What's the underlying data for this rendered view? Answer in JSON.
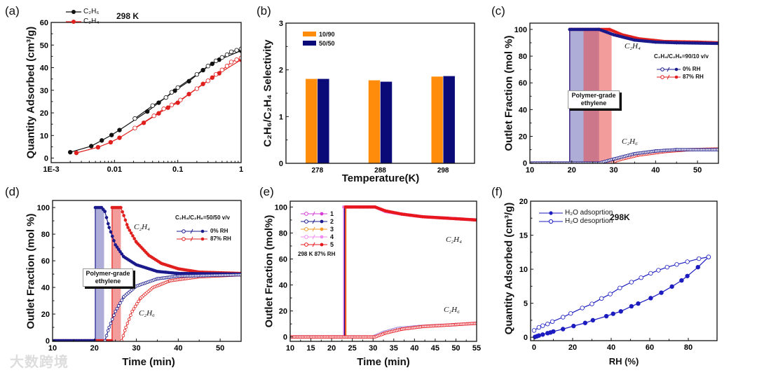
{
  "watermark": "大数跨境",
  "chart_data": [
    {
      "id": "a",
      "type": "scatter",
      "panel_label": "(a)",
      "xscale": "log",
      "xlim": [
        0.001,
        1
      ],
      "ylim": [
        -2,
        60
      ],
      "xticks": [
        0.001,
        0.01,
        0.1,
        1
      ],
      "xtick_labels": [
        "1E-3",
        "0.01",
        "0.1",
        "1"
      ],
      "yticks": [
        0,
        10,
        20,
        30,
        40,
        50,
        60
      ],
      "xlabel": "",
      "ylabel": "Quantity Adsorbed (cm³/g)",
      "annotations": [
        "298 K"
      ],
      "legend": [
        "C₂H₆",
        "C₂H₄"
      ],
      "colors": {
        "C2H6": "#111111",
        "C2H4": "#e0201e"
      },
      "series": [
        {
          "name": "C₂H₆ adsorption",
          "color": "#111111",
          "marker": "filled",
          "x": [
            0.002,
            0.0043,
            0.0063,
            0.009,
            0.012,
            0.033,
            0.05,
            0.09,
            0.15,
            0.25,
            0.35,
            0.45,
            1
          ],
          "y": [
            2.6,
            5.3,
            7.8,
            10.2,
            12.4,
            20.6,
            24.5,
            29.8,
            34,
            38.9,
            41.7,
            43.5,
            47.5
          ]
        },
        {
          "name": "C₂H₆ desorption",
          "color": "#111111",
          "marker": "open",
          "x": [
            1,
            0.85,
            0.7,
            0.6,
            0.5,
            0.4,
            0.3,
            0.2,
            0.1,
            0.08,
            0.065,
            0.04,
            0.021
          ],
          "y": [
            48.3,
            47.7,
            47,
            45.7,
            44.5,
            43,
            40.7,
            37,
            31.2,
            29.1,
            26.8,
            23.2,
            17.5
          ]
        },
        {
          "name": "C₂H₄ adsorption",
          "color": "#e0201e",
          "marker": "filled",
          "x": [
            0.0025,
            0.0055,
            0.0087,
            0.012,
            0.029,
            0.05,
            0.07,
            0.1,
            0.15,
            0.25,
            0.35,
            0.45,
            1
          ],
          "y": [
            2.3,
            4.8,
            7,
            9,
            15.6,
            19.8,
            22.3,
            24.5,
            28.3,
            32.8,
            35.6,
            37.5,
            43.5
          ]
        },
        {
          "name": "C₂H₄ desorption",
          "color": "#e0201e",
          "marker": "open",
          "x": [
            1,
            0.85,
            0.7,
            0.6,
            0.5,
            0.4,
            0.3,
            0.2,
            0.11,
            0.08,
            0.06,
            0.042,
            0.021
          ],
          "y": [
            44.3,
            43.5,
            42.5,
            40.7,
            39,
            37,
            34.2,
            30.7,
            25.7,
            23.5,
            21.8,
            18.7,
            13.3
          ]
        }
      ]
    },
    {
      "id": "b",
      "type": "bar",
      "panel_label": "(b)",
      "categories": [
        "278",
        "288",
        "298"
      ],
      "ylim": [
        0,
        3
      ],
      "yticks": [
        0,
        1,
        2,
        3
      ],
      "yminor": [
        0.5,
        1.5,
        2.5
      ],
      "xlabel": "Temperature(K)",
      "ylabel": "C₂H₆/C₂H₄ Selectivity",
      "series": [
        {
          "name": "10/90",
          "color": "#ff8c0a",
          "values": [
            1.81,
            1.78,
            1.86
          ]
        },
        {
          "name": "50/50",
          "color": "#0a0a78",
          "values": [
            1.81,
            1.75,
            1.87
          ]
        }
      ]
    },
    {
      "id": "c",
      "type": "line",
      "panel_label": "(c)",
      "dense_markers": true,
      "xlim": [
        10,
        55
      ],
      "ylim": [
        -0.2,
        104.7
      ],
      "xticks": [
        10,
        20,
        30,
        40,
        50
      ],
      "yticks": [
        0,
        20,
        40,
        60,
        80,
        100
      ],
      "xlabel": "",
      "ylabel": "Outlet Fraction (mol %)",
      "annotations": [
        "C₂H₄",
        "C₂H₆",
        "C₂H₄/C₂H₆=90/10 v/v",
        "Polymer-grade ethylene"
      ],
      "legend": [
        "0% RH",
        "87% RH"
      ],
      "regions": [
        {
          "name": "0% RH polymer-grade window",
          "x": [
            19.5,
            26.5
          ],
          "color": "#6a6ab8"
        },
        {
          "name": "87% RH polymer-grade window",
          "x": [
            22.8,
            29.5
          ],
          "color": "#e84a4a"
        }
      ],
      "series": [
        {
          "name": "C₂H₄ 87% RH",
          "color": "#e0201e",
          "marker": "filled",
          "x": [
            10,
            19.5,
            19.5,
            29,
            32,
            36,
            42,
            50,
            55
          ],
          "y": [
            0,
            0,
            100,
            100,
            96,
            93,
            91,
            90.5,
            90
          ]
        },
        {
          "name": "C₂H₆ 87% RH",
          "color": "#e0201e",
          "marker": "open",
          "x": [
            10,
            29,
            32,
            36,
            42,
            48,
            55
          ],
          "y": [
            0,
            0,
            3,
            6,
            8.5,
            10,
            10.5
          ]
        },
        {
          "name": "C₂H₄ 0% RH",
          "color": "#1a1a8c",
          "marker": "filled",
          "x": [
            10,
            19.5,
            19.5,
            26.5,
            30,
            35,
            40,
            45,
            55
          ],
          "y": [
            0,
            0,
            100,
            100,
            96,
            92,
            90.5,
            90,
            89.5
          ]
        },
        {
          "name": "C₂H₆ 0% RH",
          "color": "#1a1a8c",
          "marker": "open",
          "x": [
            10,
            26.5,
            30,
            35,
            40,
            45,
            55
          ],
          "y": [
            0,
            0,
            3,
            7,
            9,
            10,
            10
          ]
        }
      ]
    },
    {
      "id": "d",
      "type": "line",
      "panel_label": "(d)",
      "dense_markers": true,
      "xlim": [
        10,
        55
      ],
      "ylim": [
        -0.5,
        105.3
      ],
      "xticks": [
        10,
        20,
        30,
        40,
        50
      ],
      "yticks": [
        0,
        20,
        40,
        60,
        80,
        100
      ],
      "xlabel": "Time (min)",
      "ylabel": "Outlet Fraction (mol %)",
      "annotations": [
        "C₂H₄",
        "C₂H₆",
        "C₂H₄/C₂H₆=50/50 v/v",
        "Polymer-grade ethylene"
      ],
      "legend": [
        "0% RH",
        "87% RH"
      ],
      "regions": [
        {
          "name": "0% RH polymer-grade window",
          "x": [
            20.2,
            22.3
          ],
          "color": "#6a6ab8"
        },
        {
          "name": "87% RH polymer-grade window",
          "x": [
            24.2,
            26.3
          ],
          "color": "#e84a4a"
        }
      ],
      "series": [
        {
          "name": "C₂H₄ 87% RH",
          "color": "#e0201e",
          "marker": "filled",
          "x": [
            10,
            24.2,
            24.2,
            26.3,
            27,
            28,
            30,
            33,
            36,
            40,
            45,
            55
          ],
          "y": [
            0,
            0,
            100,
            100,
            94,
            85,
            74,
            64,
            58,
            54,
            51.5,
            50.5
          ]
        },
        {
          "name": "C₂H₆ 87% RH",
          "color": "#e0201e",
          "marker": "open",
          "x": [
            26.5,
            27.5,
            29,
            31,
            34,
            38,
            45,
            55
          ],
          "y": [
            0,
            10,
            22,
            32,
            40,
            45,
            48,
            49.5
          ]
        },
        {
          "name": "C₂H₄ 0% RH",
          "color": "#1a1a8c",
          "marker": "filled",
          "x": [
            10,
            20.2,
            20.2,
            21.7,
            22.5,
            23.5,
            25,
            27,
            30,
            35,
            40,
            55
          ],
          "y": [
            0,
            0,
            100,
            100,
            97,
            85,
            72,
            63,
            57,
            52,
            50.5,
            50
          ]
        },
        {
          "name": "C₂H₆ 0% RH",
          "color": "#1a1a8c",
          "marker": "open",
          "x": [
            22.5,
            23.5,
            25,
            27,
            30,
            35,
            40,
            55
          ],
          "y": [
            0,
            10,
            22,
            33,
            41,
            46.5,
            48.5,
            49.5
          ]
        }
      ]
    },
    {
      "id": "e",
      "type": "line",
      "panel_label": "(e)",
      "dense_markers": true,
      "xlim": [
        10,
        55
      ],
      "ylim": [
        -3.4,
        104.5
      ],
      "xticks": [
        10,
        15,
        20,
        25,
        30,
        35,
        40,
        45,
        50,
        55
      ],
      "yticks": [
        0,
        20,
        40,
        60,
        80,
        100
      ],
      "xlabel": "Time (min)",
      "ylabel": "Outlet Fraction (mol%)",
      "annotations": [
        "C₂H₄",
        "C₂H₆",
        "298 K 87% RH"
      ],
      "legend": [
        "1",
        "2",
        "3",
        "4",
        "5"
      ],
      "series": [
        {
          "name": "1 C₂H₄",
          "color": "#d63bd6",
          "marker": "filled",
          "x": [
            10,
            22.9,
            22.9,
            30.5,
            33,
            37,
            42,
            50,
            55
          ],
          "y": [
            0,
            0,
            100,
            100,
            96.5,
            94.5,
            92.5,
            91,
            90
          ]
        },
        {
          "name": "4 C₂H₄",
          "color": "#f08cf0",
          "marker": "filled",
          "x": [
            10,
            22.9,
            22.9,
            30.5,
            33,
            37,
            42,
            50,
            55
          ],
          "y": [
            0,
            0,
            100,
            100,
            96.5,
            94.5,
            92.5,
            91,
            90
          ]
        },
        {
          "name": "2 C₂H₄",
          "color": "#1a1a8c",
          "marker": "none",
          "x": [
            10,
            23.1,
            23.1,
            30.5,
            33,
            37,
            42,
            50,
            55
          ],
          "y": [
            0,
            0,
            100,
            100,
            97,
            94.5,
            92.5,
            91,
            90
          ]
        },
        {
          "name": "3 C₂H₄",
          "color": "#f39a2a",
          "marker": "none",
          "x": [
            10,
            23.5,
            23.5,
            30.5,
            33,
            37,
            42,
            50,
            55
          ],
          "y": [
            0,
            0,
            100,
            100,
            97,
            94.5,
            92.5,
            91,
            90
          ]
        },
        {
          "name": "5 C₂H₄",
          "color": "#e8171e",
          "marker": "filled",
          "x": [
            10,
            23.3,
            23.3,
            30.5,
            33,
            37,
            42,
            50,
            55
          ],
          "y": [
            0,
            0,
            100,
            100,
            97,
            94.5,
            92.5,
            91,
            90
          ]
        },
        {
          "name": "1-4 C₂H₆",
          "color": "#9a7ad0",
          "marker": "open",
          "x": [
            10,
            30,
            32.5,
            36,
            41,
            50,
            55
          ],
          "y": [
            0,
            0,
            3.5,
            6.5,
            8,
            9.5,
            10.5
          ]
        },
        {
          "name": "5 C₂H₆",
          "color": "#e8171e",
          "marker": "open",
          "x": [
            10,
            30.5,
            33,
            37,
            42,
            50,
            55
          ],
          "y": [
            0,
            0,
            3,
            6,
            8,
            9.5,
            10.5
          ]
        }
      ],
      "legend_colors": [
        "#d63bd6",
        "#1a1a8c",
        "#f39a2a",
        "#f08cf0",
        "#e8171e"
      ]
    },
    {
      "id": "f",
      "type": "scatter",
      "panel_label": "(f)",
      "xlim": [
        -1.8,
        94.9
      ],
      "ylim": [
        -0.5,
        20
      ],
      "xticks": [
        0,
        20,
        40,
        60,
        80
      ],
      "yticks": [
        0,
        5,
        10,
        15,
        20
      ],
      "xlabel": "RH (%)",
      "ylabel": "Quantity Adsorbed (cm³/g)",
      "annotations": [
        "298K"
      ],
      "legend": [
        "H₂O adsoprtion",
        "H₂O desoprtion"
      ],
      "series": [
        {
          "name": "H₂O adsoprtion",
          "color": "#1c1cc0",
          "marker": "filled",
          "x": [
            0.5,
            1.5,
            2.5,
            4.5,
            7,
            8.5,
            10,
            15,
            20.5,
            26.5,
            30.5,
            37.5,
            41,
            45,
            50.5,
            54,
            60.5,
            66,
            71.5,
            76.5,
            79.5,
            85,
            90.5
          ],
          "y": [
            0.05,
            0.15,
            0.25,
            0.4,
            0.6,
            0.7,
            0.85,
            1.2,
            1.65,
            2.1,
            2.5,
            3.1,
            3.45,
            3.8,
            4.55,
            4.95,
            5.75,
            6.55,
            7.45,
            8.35,
            9.0,
            10.3,
            11.8
          ]
        },
        {
          "name": "H₂O desoprtion",
          "color": "#1c1cc0",
          "marker": "open",
          "x": [
            90.5,
            85.5,
            79.5,
            74,
            69,
            64.5,
            60.5,
            55.5,
            50.5,
            44.5,
            39.5,
            35,
            30,
            25,
            19,
            15,
            9.5,
            7,
            4.5,
            2.5,
            0
          ],
          "y": [
            11.8,
            11.55,
            11.1,
            10.7,
            10.3,
            9.85,
            9.4,
            8.75,
            8.1,
            7.25,
            6.35,
            5.7,
            4.9,
            4.3,
            3.5,
            2.95,
            2.3,
            1.95,
            1.7,
            1.45,
            1.0
          ]
        }
      ]
    }
  ]
}
